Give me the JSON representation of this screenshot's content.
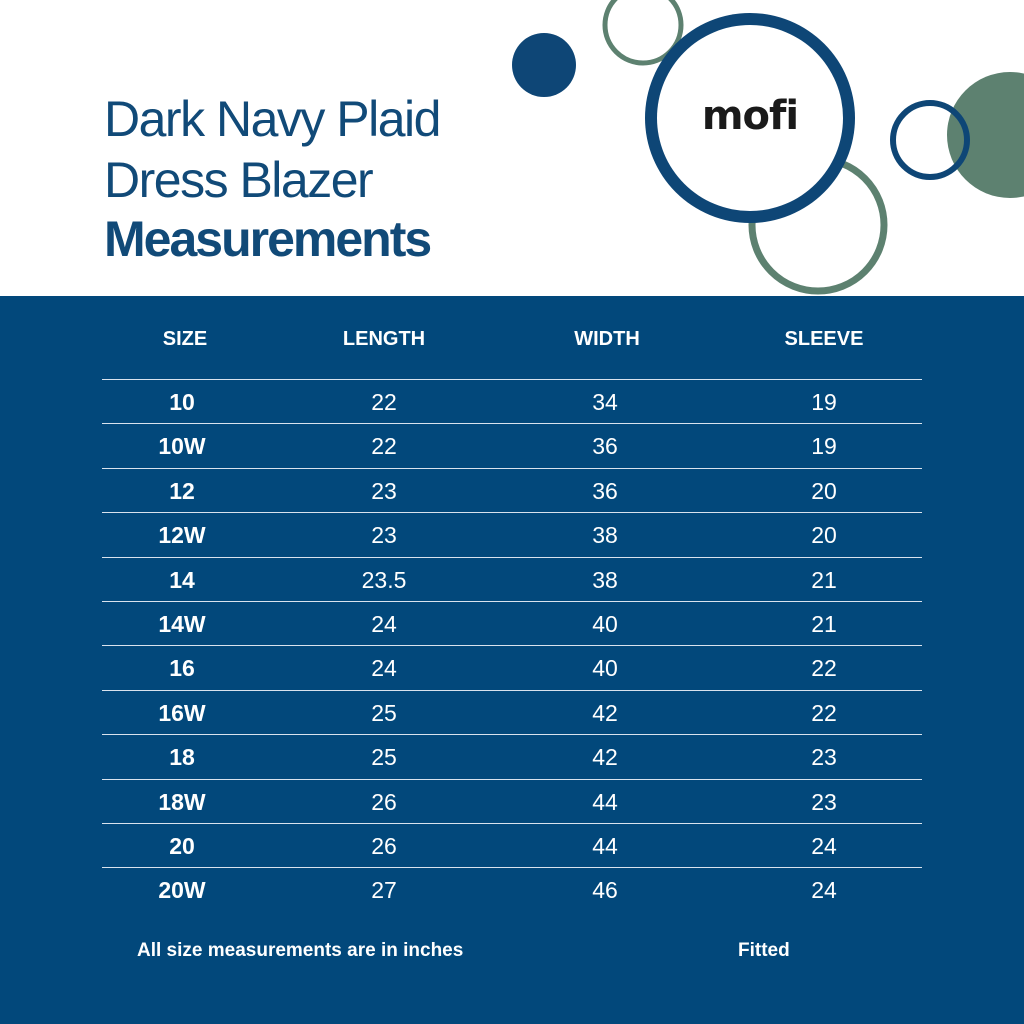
{
  "title": {
    "line1": "Dark Navy Plaid",
    "line2": "Dress Blazer",
    "line3": "Measurements"
  },
  "brand": {
    "logo_text": "mofi"
  },
  "colors": {
    "navy": "#02487b",
    "title_blue": "#114a78",
    "sage_green": "#5d8170",
    "ring_blue": "#0e4676"
  },
  "table": {
    "columns": [
      "SIZE",
      "LENGTH",
      "WIDTH",
      "SLEEVE"
    ],
    "rows": [
      {
        "size": "10",
        "length": "22",
        "width": "34",
        "sleeve": "19"
      },
      {
        "size": "10W",
        "length": "22",
        "width": "36",
        "sleeve": "19"
      },
      {
        "size": "12",
        "length": "23",
        "width": "36",
        "sleeve": "20"
      },
      {
        "size": "12W",
        "length": "23",
        "width": "38",
        "sleeve": "20"
      },
      {
        "size": "14",
        "length": "23.5",
        "width": "38",
        "sleeve": "21"
      },
      {
        "size": "14W",
        "length": "24",
        "width": "40",
        "sleeve": "21"
      },
      {
        "size": "16",
        "length": "24",
        "width": "40",
        "sleeve": "22"
      },
      {
        "size": "16W",
        "length": "25",
        "width": "42",
        "sleeve": "22"
      },
      {
        "size": "18",
        "length": "25",
        "width": "42",
        "sleeve": "23"
      },
      {
        "size": "18W",
        "length": "26",
        "width": "44",
        "sleeve": "23"
      },
      {
        "size": "20",
        "length": "26",
        "width": "44",
        "sleeve": "24"
      },
      {
        "size": "20W",
        "length": "27",
        "width": "46",
        "sleeve": "24"
      }
    ]
  },
  "footer": {
    "note": "All size measurements are in inches",
    "fit": "Fitted"
  }
}
